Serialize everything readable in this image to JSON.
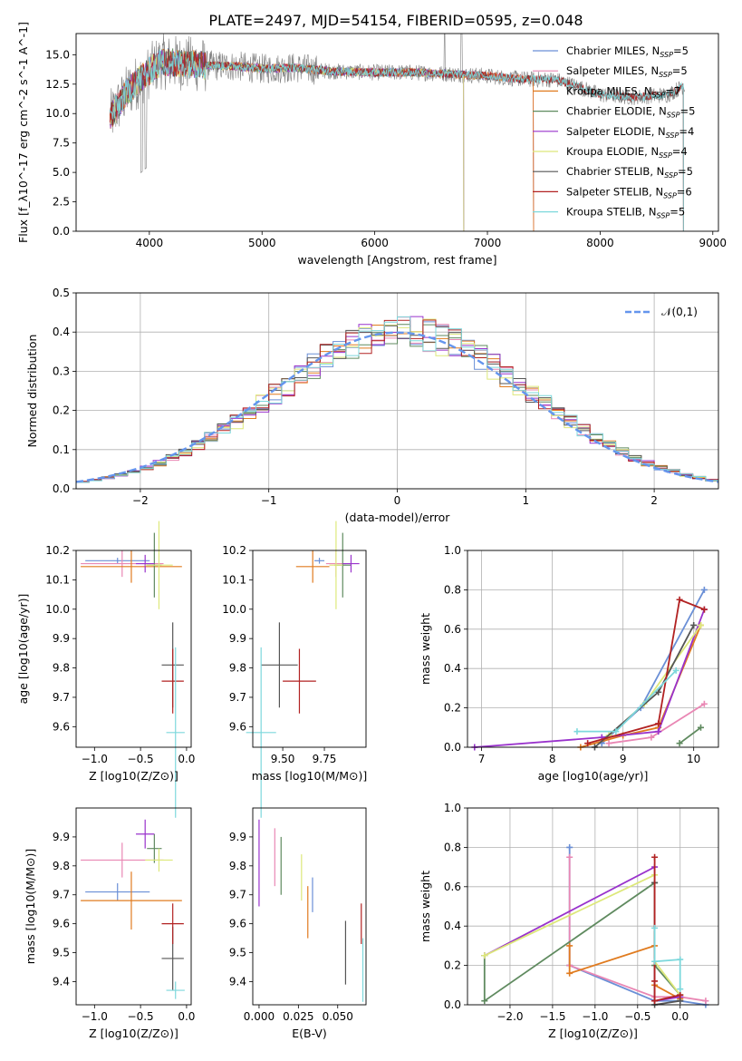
{
  "figure_title": "PLATE=2497, MJD=54154, FIBERID=0595, z=0.048",
  "colors": {
    "Chabrier MILES": "#6a8fd6",
    "Salpeter MILES": "#e987b4",
    "Kroupa MILES": "#e07b1f",
    "Chabrier ELODIE": "#5f8a5f",
    "Salpeter ELODIE": "#9932cc",
    "Kroupa ELODIE": "#dde87a",
    "Chabrier STELIB": "#555555",
    "Salpeter STELIB": "#b22222",
    "Kroupa STELIB": "#7dd8dc",
    "data": "#808080",
    "normal": "#6495ed"
  },
  "chart_data": [
    {
      "id": "spectrum",
      "type": "line",
      "title": "PLATE=2497, MJD=54154, FIBERID=0595, z=0.048",
      "xlabel": "wavelength [Angstrom, rest frame]",
      "ylabel": "Flux [f_λ10^-17 erg cm^-2 s^-1 A^-1]",
      "xlim": [
        3350,
        9050
      ],
      "ylim": [
        0,
        16.8
      ],
      "xticks": [
        4000,
        5000,
        6000,
        7000,
        8000,
        9000
      ],
      "yticks": [
        0.0,
        2.5,
        5.0,
        7.5,
        10.0,
        12.5,
        15.0
      ],
      "legend": [
        "Chabrier MILES, N_SSP=5",
        "Salpeter MILES, N_SSP=5",
        "Kroupa MILES, N_SSP=7",
        "Chabrier ELODIE, N_SSP=5",
        "Salpeter ELODIE, N_SSP=4",
        "Kroupa ELODIE, N_SSP=4",
        "Chabrier STELIB, N_SSP=5",
        "Salpeter STELIB, N_SSP=6",
        "Kroupa STELIB, N_SSP=5"
      ],
      "legend_loc": "right",
      "continuum": {
        "x": [
          3650,
          3800,
          3950,
          4100,
          4300,
          4500,
          4800,
          5000,
          5300,
          5600,
          6000,
          6300,
          6600,
          6800,
          7000,
          7200,
          7400,
          7600,
          7800,
          8000,
          8300,
          8600,
          8750
        ],
        "y": [
          9.6,
          11.8,
          13.2,
          14.4,
          14.3,
          14.1,
          14.0,
          13.8,
          13.9,
          13.6,
          13.5,
          13.5,
          13.4,
          13.3,
          13.2,
          13.0,
          12.9,
          12.9,
          12.3,
          11.6,
          11.4,
          11.6,
          12.4
        ]
      },
      "data_range": [
        3650,
        8750
      ],
      "model_ranges": {
        "Chabrier MILES": [
          3650,
          7410
        ],
        "Salpeter MILES": [
          3650,
          7410
        ],
        "Kroupa MILES": [
          3650,
          7410
        ],
        "Chabrier ELODIE": [
          3650,
          6790
        ],
        "Salpeter ELODIE": [
          3650,
          6790
        ],
        "Kroupa ELODIE": [
          3650,
          6790
        ],
        "Chabrier STELIB": [
          3650,
          8740
        ],
        "Salpeter STELIB": [
          3650,
          8740
        ],
        "Kroupa STELIB": [
          3650,
          8740
        ]
      }
    },
    {
      "id": "residuals",
      "type": "line",
      "xlabel": "(data-model)/error",
      "ylabel": "Normed distribution",
      "xlim": [
        -2.5,
        2.5
      ],
      "ylim": [
        0,
        0.5
      ],
      "xticks": [
        -2,
        -1,
        0,
        1,
        2
      ],
      "yticks": [
        0.0,
        0.1,
        0.2,
        0.3,
        0.4,
        0.5
      ],
      "grid": true,
      "legend": [
        "𝒩(0,1)"
      ],
      "legend_loc": "top-right",
      "bin_width": 0.1,
      "hist_start": -2.5
    },
    {
      "id": "z-age",
      "type": "scatter",
      "xlabel": "Z [log10(Z/Z⊙)]",
      "ylabel": "age [log10(age/yr)]",
      "xlim": [
        -1.2,
        0.05
      ],
      "ylim": [
        9.53,
        10.2
      ],
      "xticks": [
        -1.0,
        -0.5,
        0.0
      ],
      "yticks": [
        9.6,
        9.7,
        9.8,
        9.9,
        10.0,
        10.1,
        10.2
      ],
      "points": [
        {
          "series": "Chabrier MILES",
          "x": -0.75,
          "y": 10.165,
          "xerr": 0.35,
          "yerr": 0.01
        },
        {
          "series": "Salpeter MILES",
          "x": -0.7,
          "y": 10.155,
          "xerr": 0.45,
          "yerr": 0.045
        },
        {
          "series": "Kroupa MILES",
          "x": -0.6,
          "y": 10.145,
          "xerr": 0.55,
          "yerr": 0.055
        },
        {
          "series": "Chabrier ELODIE",
          "x": -0.35,
          "y": 10.15,
          "xerr": 0.08,
          "yerr": 0.11
        },
        {
          "series": "Salpeter ELODIE",
          "x": -0.45,
          "y": 10.155,
          "xerr": 0.1,
          "yerr": 0.03
        },
        {
          "series": "Kroupa ELODIE",
          "x": -0.3,
          "y": 10.15,
          "xerr": 0.15,
          "yerr": 0.15
        },
        {
          "series": "Chabrier STELIB",
          "x": -0.15,
          "y": 9.81,
          "xerr": 0.12,
          "yerr": 0.145
        },
        {
          "series": "Salpeter STELIB",
          "x": -0.15,
          "y": 9.755,
          "xerr": 0.12,
          "yerr": 0.11
        },
        {
          "series": "Kroupa STELIB",
          "x": -0.12,
          "y": 9.58,
          "xerr": 0.1,
          "yerr": 0.29
        }
      ]
    },
    {
      "id": "mass-age",
      "type": "scatter",
      "xlabel": "mass [log10(M/M⊙)]",
      "ylabel": "",
      "xlim": [
        9.32,
        10.0
      ],
      "ylim": [
        9.53,
        10.2
      ],
      "xticks": [
        9.5,
        9.75
      ],
      "yticks": [
        9.6,
        9.7,
        9.8,
        9.9,
        10.0,
        10.1,
        10.2
      ],
      "points": [
        {
          "series": "Chabrier MILES",
          "x": 9.72,
          "y": 10.165,
          "xerr": 0.03,
          "yerr": 0.01
        },
        {
          "series": "Salpeter MILES",
          "x": 9.82,
          "y": 10.155,
          "xerr": 0.06,
          "yerr": 0.045
        },
        {
          "series": "Kroupa MILES",
          "x": 9.68,
          "y": 10.145,
          "xerr": 0.1,
          "yerr": 0.055
        },
        {
          "series": "Chabrier ELODIE",
          "x": 9.86,
          "y": 10.15,
          "xerr": 0.05,
          "yerr": 0.11
        },
        {
          "series": "Salpeter ELODIE",
          "x": 9.91,
          "y": 10.155,
          "xerr": 0.05,
          "yerr": 0.03
        },
        {
          "series": "Kroupa ELODIE",
          "x": 9.82,
          "y": 10.15,
          "xerr": 0.04,
          "yerr": 0.15
        },
        {
          "series": "Chabrier STELIB",
          "x": 9.48,
          "y": 9.81,
          "xerr": 0.11,
          "yerr": 0.145
        },
        {
          "series": "Salpeter STELIB",
          "x": 9.6,
          "y": 9.755,
          "xerr": 0.1,
          "yerr": 0.11
        },
        {
          "series": "Kroupa STELIB",
          "x": 9.37,
          "y": 9.58,
          "xerr": 0.09,
          "yerr": 0.29
        }
      ]
    },
    {
      "id": "age-weight",
      "type": "line",
      "xlabel": "age [log10(age/yr)]",
      "ylabel": "mass weight",
      "xlim": [
        6.8,
        10.35
      ],
      "ylim": [
        0,
        1.0
      ],
      "xticks": [
        7,
        8,
        9,
        10
      ],
      "yticks": [
        0.0,
        0.2,
        0.4,
        0.6,
        0.8,
        1.0
      ],
      "grid": true,
      "series": [
        {
          "name": "Chabrier MILES",
          "x": [
            8.7,
            9.25,
            10.15
          ],
          "y": [
            0.02,
            0.2,
            0.8
          ]
        },
        {
          "name": "Salpeter MILES",
          "x": [
            8.8,
            9.4,
            10.15
          ],
          "y": [
            0.02,
            0.05,
            0.22
          ]
        },
        {
          "name": "Kroupa MILES",
          "x": [
            8.4,
            9.0,
            9.5,
            10.1
          ],
          "y": [
            0.0,
            0.06,
            0.1,
            0.62
          ]
        },
        {
          "name": "Chabrier ELODIE",
          "x": [
            9.8,
            10.1
          ],
          "y": [
            0.02,
            0.1
          ]
        },
        {
          "name": "Salpeter ELODIE",
          "x": [
            6.9,
            8.7,
            9.5,
            10.15
          ],
          "y": [
            0.0,
            0.05,
            0.08,
            0.7
          ]
        },
        {
          "name": "Kroupa ELODIE",
          "x": [
            8.8,
            9.3,
            10.1
          ],
          "y": [
            0.06,
            0.22,
            0.62
          ]
        },
        {
          "name": "Chabrier STELIB",
          "x": [
            8.6,
            9.5,
            10.0
          ],
          "y": [
            0.0,
            0.28,
            0.62
          ]
        },
        {
          "name": "Salpeter STELIB",
          "x": [
            8.5,
            9.5,
            9.8,
            10.15
          ],
          "y": [
            0.02,
            0.12,
            0.75,
            0.7
          ]
        },
        {
          "name": "Kroupa STELIB",
          "x": [
            8.35,
            8.9,
            9.75
          ],
          "y": [
            0.08,
            0.08,
            0.39
          ]
        }
      ]
    },
    {
      "id": "z-mass",
      "type": "scatter",
      "xlabel": "Z [log10(Z/Z⊙)]",
      "ylabel": "mass [log10(M/M⊙)]",
      "xlim": [
        -1.2,
        0.05
      ],
      "ylim": [
        9.32,
        10.0
      ],
      "xticks": [
        -1.0,
        -0.5,
        0.0
      ],
      "yticks": [
        9.4,
        9.5,
        9.6,
        9.7,
        9.8,
        9.9
      ],
      "points": [
        {
          "series": "Chabrier MILES",
          "x": -0.75,
          "y": 9.71,
          "xerr": 0.35,
          "yerr": 0.03
        },
        {
          "series": "Salpeter MILES",
          "x": -0.7,
          "y": 9.82,
          "xerr": 0.45,
          "yerr": 0.06
        },
        {
          "series": "Kroupa MILES",
          "x": -0.6,
          "y": 9.68,
          "xerr": 0.55,
          "yerr": 0.1
        },
        {
          "series": "Chabrier ELODIE",
          "x": -0.35,
          "y": 9.86,
          "xerr": 0.08,
          "yerr": 0.05
        },
        {
          "series": "Salpeter ELODIE",
          "x": -0.45,
          "y": 9.91,
          "xerr": 0.1,
          "yerr": 0.05
        },
        {
          "series": "Kroupa ELODIE",
          "x": -0.3,
          "y": 9.82,
          "xerr": 0.15,
          "yerr": 0.04
        },
        {
          "series": "Chabrier STELIB",
          "x": -0.15,
          "y": 9.48,
          "xerr": 0.12,
          "yerr": 0.11
        },
        {
          "series": "Salpeter STELIB",
          "x": -0.15,
          "y": 9.6,
          "xerr": 0.12,
          "yerr": 0.07
        },
        {
          "series": "Kroupa STELIB",
          "x": -0.12,
          "y": 9.37,
          "xerr": 0.1,
          "yerr": 0.03
        }
      ]
    },
    {
      "id": "ebv-mass",
      "type": "scatter",
      "xlabel": "E(B-V)",
      "ylabel": "",
      "xlim": [
        -0.004,
        0.068
      ],
      "ylim": [
        9.32,
        10.0
      ],
      "xticks": [
        0.0,
        0.025,
        0.05
      ],
      "yticks": [
        9.4,
        9.5,
        9.6,
        9.7,
        9.8,
        9.9
      ],
      "points": [
        {
          "series": "Chabrier MILES",
          "x": 0.034,
          "y": 9.7,
          "yerr": 0.06
        },
        {
          "series": "Salpeter MILES",
          "x": 0.01,
          "y": 9.83,
          "yerr": 0.1
        },
        {
          "series": "Kroupa MILES",
          "x": 0.031,
          "y": 9.64,
          "yerr": 0.09
        },
        {
          "series": "Chabrier ELODIE",
          "x": 0.014,
          "y": 9.8,
          "yerr": 0.1
        },
        {
          "series": "Salpeter ELODIE",
          "x": 0.0,
          "y": 9.81,
          "yerr": 0.15
        },
        {
          "series": "Kroupa ELODIE",
          "x": 0.027,
          "y": 9.76,
          "yerr": 0.08
        },
        {
          "series": "Chabrier STELIB",
          "x": 0.055,
          "y": 9.5,
          "yerr": 0.11
        },
        {
          "series": "Salpeter STELIB",
          "x": 0.065,
          "y": 9.6,
          "yerr": 0.07
        },
        {
          "series": "Kroupa STELIB",
          "x": 0.066,
          "y": 9.44,
          "yerr": 0.11
        }
      ]
    },
    {
      "id": "z-weight",
      "type": "line",
      "xlabel": "Z [log10(Z/Z⊙)]",
      "ylabel": "mass weight",
      "xlim": [
        -2.5,
        0.45
      ],
      "ylim": [
        0,
        1.0
      ],
      "xticks": [
        -2.0,
        -1.5,
        -1.0,
        -0.5,
        0.0
      ],
      "yticks": [
        0.0,
        0.2,
        0.4,
        0.6,
        0.8,
        1.0
      ],
      "grid": true,
      "series": [
        {
          "name": "Chabrier MILES",
          "x": [
            -1.3,
            -1.3,
            -0.3,
            0.0,
            0.3
          ],
          "y": [
            0.8,
            0.2,
            0.02,
            0.02,
            0.0
          ]
        },
        {
          "name": "Salpeter MILES",
          "x": [
            -1.3,
            -1.3,
            -0.3,
            0.0,
            0.3
          ],
          "y": [
            0.75,
            0.2,
            0.04,
            0.04,
            0.02
          ]
        },
        {
          "name": "Kroupa MILES",
          "x": [
            -1.3,
            -1.3,
            -0.3,
            -0.3,
            0.0
          ],
          "y": [
            0.3,
            0.16,
            0.3,
            0.1,
            0.03
          ]
        },
        {
          "name": "Chabrier ELODIE",
          "x": [
            -2.3,
            -2.3,
            -0.3,
            -0.3,
            0.0
          ],
          "y": [
            0.25,
            0.02,
            0.62,
            0.2,
            0.05
          ]
        },
        {
          "name": "Salpeter ELODIE",
          "x": [
            -2.3,
            -0.3,
            -0.3,
            0.0
          ],
          "y": [
            0.25,
            0.7,
            0.02,
            0.04
          ]
        },
        {
          "name": "Kroupa ELODIE",
          "x": [
            -2.3,
            -0.3,
            -0.3,
            0.0
          ],
          "y": [
            0.25,
            0.66,
            0.22,
            0.05
          ]
        },
        {
          "name": "Chabrier STELIB",
          "x": [
            -0.3,
            -0.3,
            0.0
          ],
          "y": [
            0.62,
            0.0,
            0.02
          ]
        },
        {
          "name": "Salpeter STELIB",
          "x": [
            -0.3,
            -0.3,
            -0.3,
            0.0
          ],
          "y": [
            0.75,
            0.12,
            0.02,
            0.05
          ]
        },
        {
          "name": "Kroupa STELIB",
          "x": [
            -0.3,
            -0.3,
            0.0,
            0.0
          ],
          "y": [
            0.39,
            0.22,
            0.23,
            0.08
          ]
        }
      ]
    }
  ]
}
